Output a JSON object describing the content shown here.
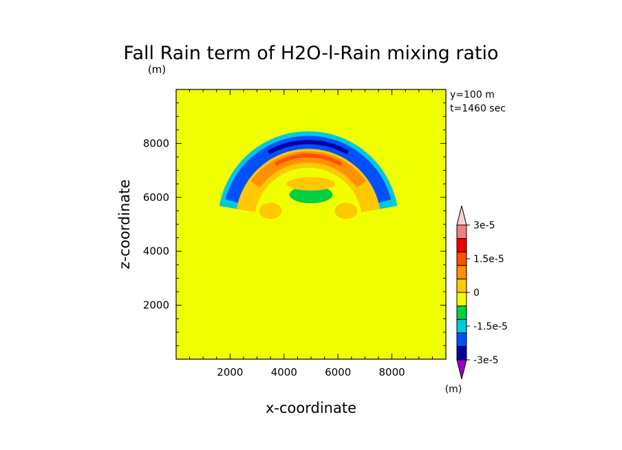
{
  "chart_data": {
    "type": "heatmap",
    "title": "Fall Rain term of H2O-l-Rain mixing ratio",
    "xlabel": "x-coordinate",
    "ylabel": "z-coordinate",
    "x_unit": "(m)",
    "colorbar_unit": "(m)",
    "xlim": [
      0,
      10000
    ],
    "ylim": [
      0,
      10000
    ],
    "x_ticks": [
      2000,
      4000,
      6000,
      8000
    ],
    "y_ticks": [
      2000,
      4000,
      6000,
      8000
    ],
    "x_tick_labels": [
      "2000",
      "4000",
      "6000",
      "8000"
    ],
    "y_tick_labels": [
      "2000",
      "4000",
      "6000",
      "8000"
    ],
    "annotations": [
      "y=100 m",
      "t=1460 sec"
    ],
    "colorbar": {
      "levels": [
        -3e-05,
        -2.25e-05,
        -1.5e-05,
        -7.5e-06,
        0,
        7.5e-06,
        1.5e-05,
        2.25e-05,
        3e-05
      ],
      "labels": [
        {
          "value": -3e-05,
          "text": "-3e-5"
        },
        {
          "value": -1.5e-05,
          "text": "-1.5e-5"
        },
        {
          "value": 0,
          "text": "0"
        },
        {
          "value": 1.5e-05,
          "text": "1.5e-5"
        },
        {
          "value": 3e-05,
          "text": "3e-5"
        }
      ],
      "colors": [
        "#a000c0",
        "#0000a0",
        "#0050ff",
        "#00c8e0",
        "#00d040",
        "#f0ff00",
        "#ffc800",
        "#ff9000",
        "#ff5000",
        "#e80000",
        "#f08080",
        "#ffd0d0"
      ]
    },
    "background_level": 2e-06,
    "features": [
      {
        "shape": "arc",
        "level": -9e-06,
        "cx": 4900,
        "cz": 5100,
        "radius": 2900,
        "thickness": 450,
        "theta": [
          10,
          170
        ]
      },
      {
        "shape": "arc",
        "level": -1.8e-05,
        "cx": 4900,
        "cz": 5100,
        "radius": 2900,
        "thickness": 280,
        "theta": [
          15,
          165
        ]
      },
      {
        "shape": "arc",
        "level": -2.6e-05,
        "cx": 4900,
        "cz": 5100,
        "radius": 2950,
        "thickness": 80,
        "theta": [
          60,
          120
        ]
      },
      {
        "shape": "arc",
        "level": 9e-06,
        "cx": 4900,
        "cz": 5100,
        "radius": 2350,
        "thickness": 350,
        "theta": [
          10,
          170
        ]
      },
      {
        "shape": "arc",
        "level": 1.8e-05,
        "cx": 4900,
        "cz": 5100,
        "radius": 2400,
        "thickness": 210,
        "theta": [
          35,
          145
        ]
      },
      {
        "shape": "arc",
        "level": 2.4e-05,
        "cx": 4900,
        "cz": 5100,
        "radius": 2450,
        "thickness": 70,
        "theta": [
          60,
          120
        ]
      },
      {
        "shape": "blob",
        "level": 9e-06,
        "cx": 3500,
        "cz": 5500,
        "rx": 420,
        "rz": 300
      },
      {
        "shape": "blob",
        "level": 9e-06,
        "cx": 6300,
        "cz": 5500,
        "rx": 420,
        "rz": 300
      },
      {
        "shape": "blob",
        "level": -3e-06,
        "cx": 5000,
        "cz": 6100,
        "rx": 800,
        "rz": 320
      },
      {
        "shape": "blob",
        "level": 9e-06,
        "cx": 5000,
        "cz": 6500,
        "rx": 900,
        "rz": 250
      }
    ]
  }
}
